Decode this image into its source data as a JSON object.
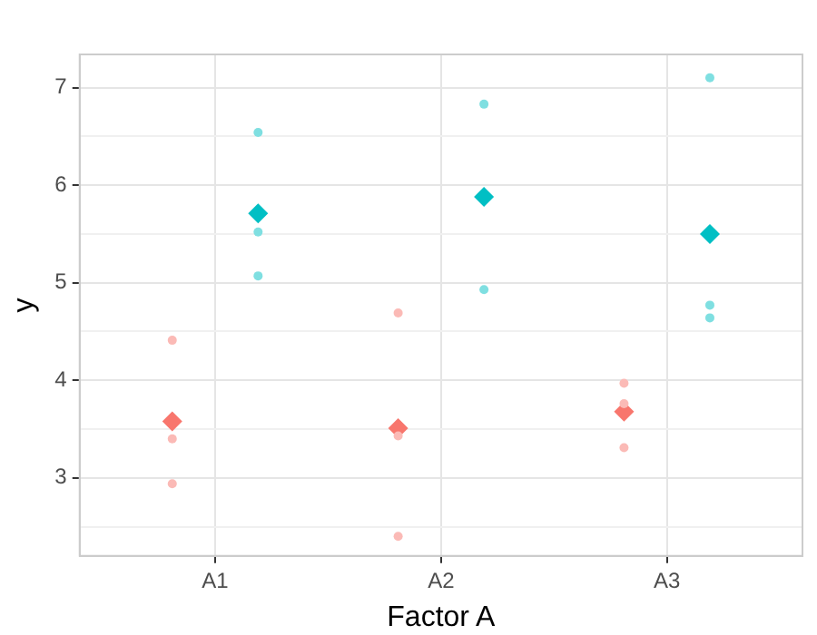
{
  "chart_data": {
    "type": "scatter",
    "xlabel": "Factor A",
    "ylabel": "y",
    "categories": [
      "A1",
      "A2",
      "A3"
    ],
    "ylim": [
      2.2,
      7.34
    ],
    "yticks": [
      {
        "value": 2.5,
        "label": null
      },
      3,
      {
        "value": 3.5,
        "label": null
      },
      4,
      {
        "value": 4.5,
        "label": null
      },
      5,
      {
        "value": 5.5,
        "label": null
      },
      6,
      {
        "value": 6.5,
        "label": null
      },
      7
    ],
    "grid": true,
    "legend": false,
    "series": [
      {
        "color": "#fbbab6",
        "marker": "circle",
        "x": [
          "A1",
          "A1",
          "A1",
          "A2",
          "A2",
          "A2",
          "A3",
          "A3",
          "A3"
        ],
        "values": [
          4.41,
          3.4,
          2.94,
          4.69,
          3.43,
          2.4,
          3.97,
          3.76,
          3.31
        ]
      },
      {
        "color": "#7fdfe1",
        "marker": "circle",
        "x": [
          "A1",
          "A1",
          "A1",
          "A2",
          "A2",
          "A3",
          "A3",
          "A3"
        ],
        "values": [
          6.54,
          5.52,
          5.07,
          6.83,
          4.93,
          7.1,
          4.77,
          4.64
        ]
      },
      {
        "color": "#f8766d",
        "marker": "diamond",
        "x": [
          "A1",
          "A2",
          "A3"
        ],
        "values": [
          3.58,
          3.51,
          3.68
        ]
      },
      {
        "color": "#00bfc4",
        "marker": "diamond",
        "x": [
          "A1",
          "A2",
          "A3"
        ],
        "values": [
          5.71,
          5.88,
          5.5
        ]
      }
    ]
  }
}
